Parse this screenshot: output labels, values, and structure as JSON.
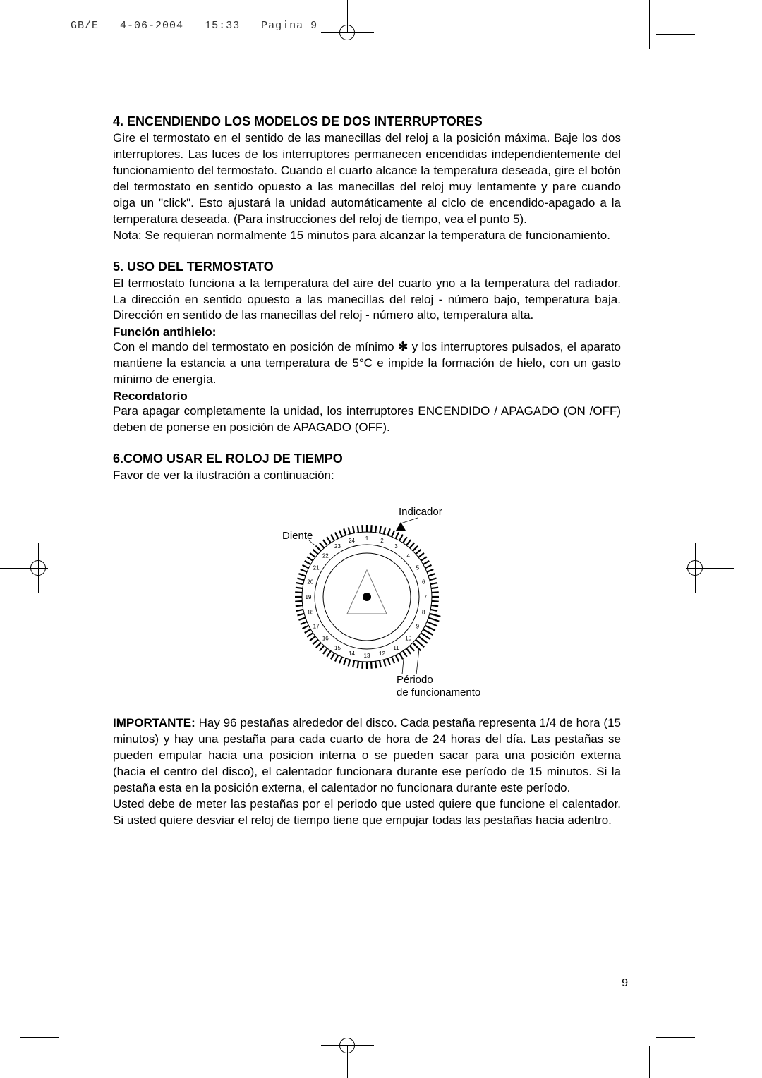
{
  "header": {
    "file": "GB/E",
    "date": "4-06-2004",
    "time": "15:33",
    "page_label": "Pagina 9"
  },
  "section4": {
    "title": "4. ENCENDIENDO LOS MODELOS DE DOS INTERRUPTORES",
    "p1": "Gire el termostato en el sentido de las manecillas del reloj a la posición máxima. Baje los dos interruptores. Las luces de los interruptores permanecen encendidas independientemente del funcionamiento del termostato. Cuando el cuarto alcance la temperatura deseada, gire el botón del termostato en sentido opuesto a las manecillas del reloj muy lentamente y pare cuando oiga un \"click\". Esto ajustará la unidad automáticamente al ciclo de encendido-apagado a la temperatura deseada. (Para instrucciones del reloj de tiempo, vea el punto 5).",
    "p2": "Nota: Se requieran normalmente 15 minutos para alcanzar la temperatura de funcionamiento."
  },
  "section5": {
    "title": "5. USO DEL TERMOSTATO",
    "p1": "El termostato funciona a la temperatura del aire del cuarto yno a la temperatura del radiador. La dirección en sentido opuesto a las manecillas del reloj - número bajo, temperatura baja. Dirección en sentido de las manecillas del reloj - número alto, temperatura alta.",
    "sub1_title": "Función antihielo:",
    "sub1_body_a": "Con el mando del termostato en posición de mínimo ",
    "sub1_body_b": " y los interruptores pulsados, el aparato mantiene la estancia a una temperatura de 5°C e impide la formación de hielo, con un gasto mínimo de energía.",
    "snow_symbol": "✻",
    "sub2_title": "Recordatorio",
    "sub2_body": "Para apagar completamente la unidad, los interruptores ENCENDIDO / APAGADO (ON /OFF) deben de ponerse en posición de APAGADO (OFF)."
  },
  "section6": {
    "title": "6.COMO USAR EL ROLOJ DE TIEMPO",
    "p1": "Favor de ver la ilustración a continuación:",
    "diagram": {
      "label_diente": "Diente",
      "label_indicador": "Indicador",
      "label_periodo1": "Périodo",
      "label_periodo2": "de funcionamento",
      "outer_color": "#000000",
      "tooth_color": "#000000",
      "face_color": "#ffffff",
      "hour_numbers": [
        "1",
        "2",
        "3",
        "4",
        "5",
        "6",
        "7",
        "8",
        "9",
        "10",
        "11",
        "12",
        "13",
        "14",
        "15",
        "16",
        "17",
        "18",
        "19",
        "20",
        "21",
        "22",
        "23",
        "24"
      ],
      "number_fontsize": 8
    },
    "important_label": "IMPORTANTE:",
    "important_body": " Hay 96 pestañas alrededor del disco. Cada pestaña representa 1/4 de hora (15 minutos) y hay una pestaña para cada cuarto de hora de 24 horas del día. Las pestañas se pueden empular hacia una posicion interna o se pueden sacar para una posición externa (hacia el centro del disco), el calentador funcionara durante ese período de 15 minutos. Si la pestaña esta en la posición externa, el calentador no funcionara durante este período.",
    "p2": "Usted debe de meter las pestañas por el periodo que usted quiere que funcione el calentador. Si usted quiere desviar el reloj de tiempo tiene que empujar todas las pestañas hacia adentro."
  },
  "page_number": "9"
}
